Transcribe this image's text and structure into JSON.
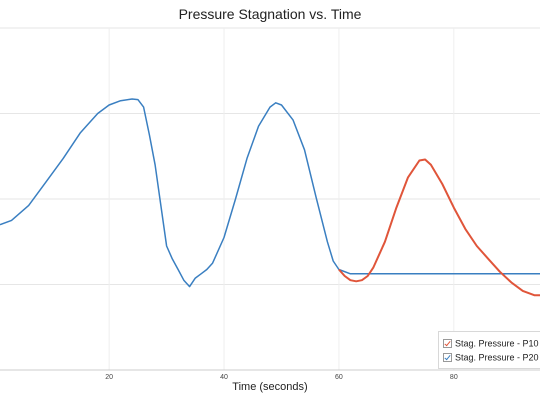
{
  "chart_data": {
    "type": "line",
    "title": "Pressure Stagnation vs. Time",
    "xlabel": "Time (seconds)",
    "ylabel": "",
    "xlim": [
      1,
      95
    ],
    "x_ticks": [
      20,
      40,
      60,
      80
    ],
    "grid": true,
    "legend_position": "bottom-right",
    "y_gridlines": 4,
    "series": [
      {
        "name": "Stag. Pressure - P10",
        "color": "#e0553a",
        "x": [
          60,
          61,
          62,
          63,
          64,
          65,
          66,
          68,
          70,
          72,
          74,
          75,
          76,
          78,
          80,
          82,
          84,
          86,
          88,
          90,
          92,
          94,
          95
        ],
        "y": [
          0.47,
          0.44,
          0.42,
          0.415,
          0.42,
          0.44,
          0.48,
          0.6,
          0.76,
          0.9,
          0.98,
          0.985,
          0.96,
          0.87,
          0.76,
          0.66,
          0.58,
          0.52,
          0.46,
          0.41,
          0.37,
          0.35,
          0.35
        ]
      },
      {
        "name": "Stag. Pressure - P20",
        "color": "#3a7fc1",
        "x": [
          1,
          3,
          6,
          9,
          12,
          15,
          18,
          20,
          22,
          24,
          25,
          26,
          27,
          28,
          30,
          31,
          32,
          33,
          34,
          35,
          36,
          37,
          38,
          40,
          42,
          44,
          46,
          48,
          49,
          50,
          52,
          54,
          56,
          58,
          59,
          60,
          62,
          64,
          95
        ],
        "y": [
          0.68,
          0.7,
          0.77,
          0.88,
          0.99,
          1.11,
          1.2,
          1.24,
          1.26,
          1.268,
          1.265,
          1.23,
          1.1,
          0.96,
          0.58,
          0.52,
          0.47,
          0.42,
          0.39,
          0.43,
          0.45,
          0.47,
          0.5,
          0.62,
          0.8,
          0.99,
          1.14,
          1.23,
          1.25,
          1.24,
          1.17,
          1.03,
          0.81,
          0.6,
          0.51,
          0.47,
          0.45,
          0.45,
          0.45
        ]
      }
    ]
  }
}
